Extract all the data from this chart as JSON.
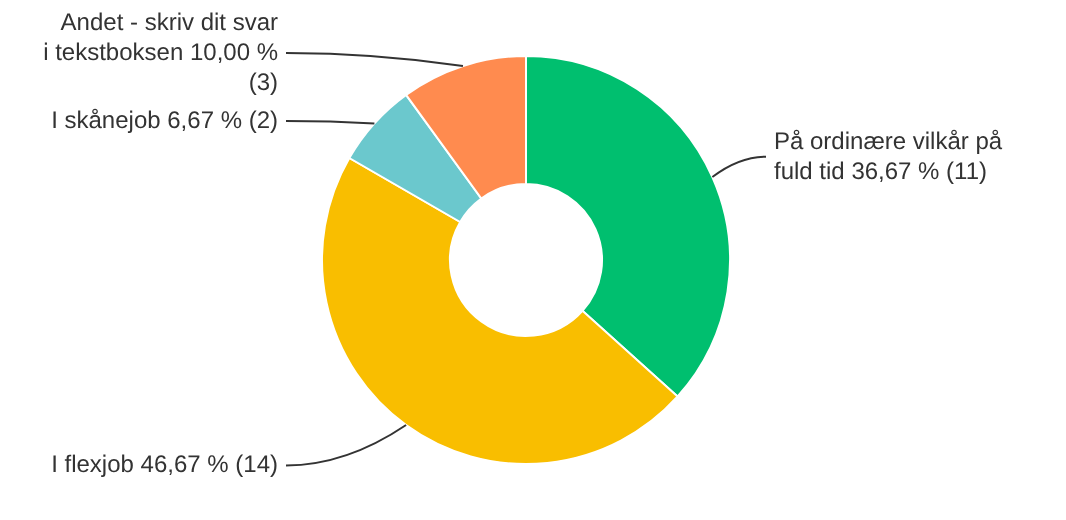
{
  "chart_data": {
    "type": "donut",
    "categories": [
      "På ordinære vilkår på fuld tid",
      "I flexjob",
      "I skånejob",
      "Andet - skriv dit svar i tekstboksen"
    ],
    "values": [
      11,
      14,
      2,
      3
    ],
    "value_labels": [
      "36,67 % (11)",
      "46,67 % (14)",
      "6,67 % (2)",
      "10,00 % (3)"
    ],
    "colors": [
      "#00bf6f",
      "#f9be00",
      "#6bc8cd",
      "#ff8b4f"
    ]
  }
}
